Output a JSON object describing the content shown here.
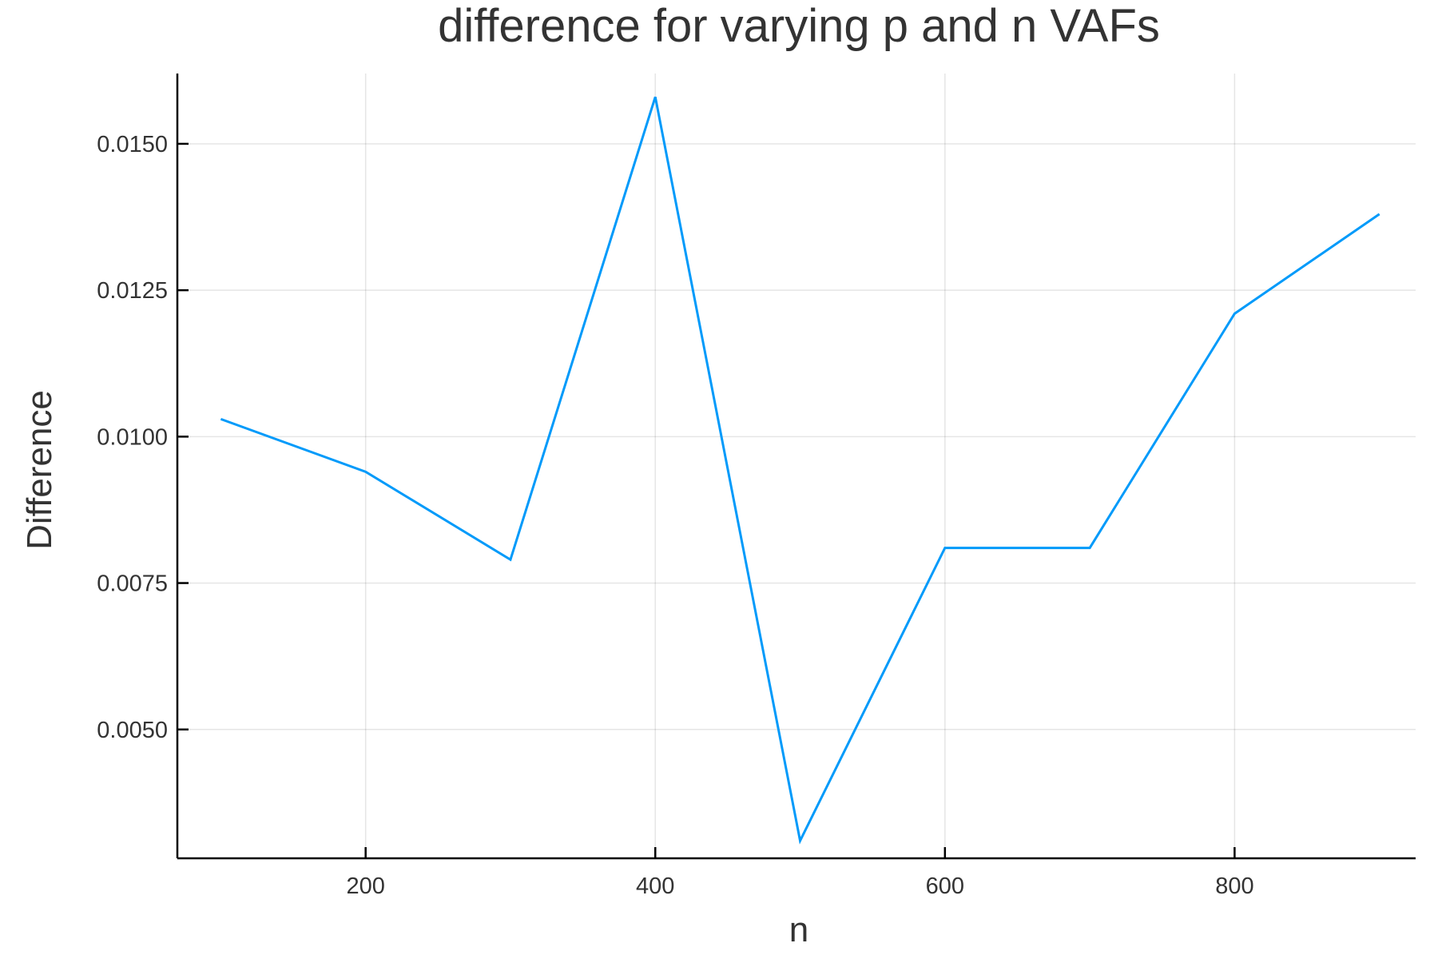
{
  "chart_data": {
    "type": "line",
    "title": "difference for varying p and n VAFs",
    "xlabel": "n",
    "ylabel": "Difference",
    "xlim": [
      70,
      925
    ],
    "ylim": [
      0.0028,
      0.0162
    ],
    "x_ticks": [
      200,
      400,
      600,
      800
    ],
    "x_tick_labels": [
      "200",
      "400",
      "600",
      "800"
    ],
    "y_ticks": [
      0.005,
      0.0075,
      0.01,
      0.0125,
      0.015
    ],
    "y_tick_labels": [
      "0.0050",
      "0.0075",
      "0.0100",
      "0.0125",
      "0.0150"
    ],
    "grid": true,
    "legend": "none",
    "series": [
      {
        "color": "#009AFA",
        "x": [
          100,
          200,
          300,
          400,
          500,
          600,
          700,
          800,
          900
        ],
        "y": [
          0.0103,
          0.0094,
          0.0079,
          0.0158,
          0.0031,
          0.0081,
          0.0081,
          0.0121,
          0.0138
        ]
      }
    ]
  }
}
